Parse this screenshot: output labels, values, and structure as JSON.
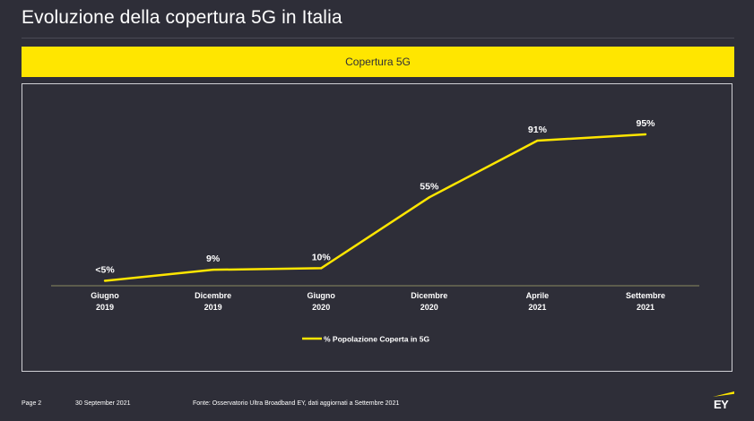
{
  "slide": {
    "title": "Evoluzione della copertura 5G in Italia",
    "banner": "Copertura 5G"
  },
  "footer": {
    "page": "Page 2",
    "date": "30 September 2021",
    "source": "Fonte: Osservatorio Ultra Broadband EY, dati aggiornati a Settembre 2021",
    "logo": "EY"
  },
  "colors": {
    "background": "#2e2e38",
    "accent": "#ffe600",
    "text": "#ffffff"
  },
  "chart_data": {
    "type": "line",
    "categories": [
      [
        "Giugno",
        "2019"
      ],
      [
        "Dicembre",
        "2019"
      ],
      [
        "Giugno",
        "2020"
      ],
      [
        "Dicembre",
        "2020"
      ],
      [
        "Aprile",
        "2021"
      ],
      [
        "Settembre",
        "2021"
      ]
    ],
    "series": [
      {
        "name": "% Popolazione Coperta in 5G",
        "values": [
          2,
          9,
          10,
          55,
          91,
          95
        ],
        "labels": [
          "<5%",
          "9%",
          "10%",
          "55%",
          "91%",
          "95%"
        ],
        "color": "#ffe600"
      }
    ],
    "ylim": [
      0,
      100
    ],
    "grid": false,
    "legend": "bottom-center"
  }
}
